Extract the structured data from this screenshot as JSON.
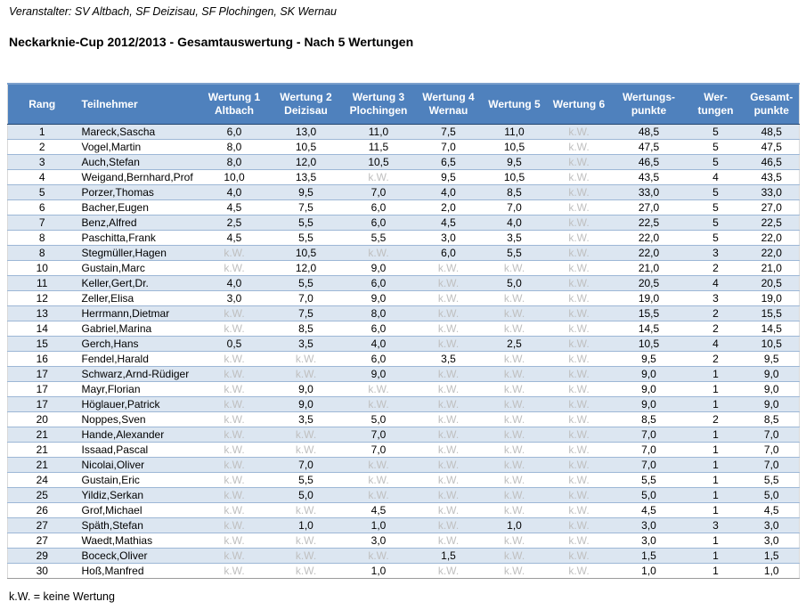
{
  "page": {
    "organizer_line": "Veranstalter: SV Altbach, SF Deizisau, SF Plochingen, SK Wernau",
    "title": "Neckarknie-Cup 2012/2013 - Gesamtauswertung - Nach 5 Wertungen",
    "footnote": "k.W. = keine Wertung"
  },
  "colors": {
    "header_bg": "#4F81BD",
    "band_bg": "#DCE6F1",
    "kw_text": "#BFBFBF"
  },
  "table": {
    "no_value_label": "k.W.",
    "columns": [
      {
        "key": "rank",
        "label": "Rang",
        "align": "center",
        "width": 77
      },
      {
        "key": "name",
        "label": "Teilnehmer",
        "align": "left",
        "width": 137
      },
      {
        "key": "w1",
        "label": "Wertung 1\nAltbach",
        "align": "center",
        "width": 81
      },
      {
        "key": "w2",
        "label": "Wertung 2\nDeizisau",
        "align": "center",
        "width": 80
      },
      {
        "key": "w3",
        "label": "Wertung 3\nPlochingen",
        "align": "center",
        "width": 83
      },
      {
        "key": "w4",
        "label": "Wertung 4\nWernau",
        "align": "center",
        "width": 74
      },
      {
        "key": "w5",
        "label": "Wertung 5",
        "align": "center",
        "width": 74
      },
      {
        "key": "w6",
        "label": "Wertung 6",
        "align": "center",
        "width": 71
      },
      {
        "key": "wpoints",
        "label": "Wertungs-\npunkte",
        "align": "center",
        "width": 86
      },
      {
        "key": "count",
        "label": "Wer-\ntungen",
        "align": "center",
        "width": 64
      },
      {
        "key": "total",
        "label": "Gesamt-\npunkte",
        "align": "center",
        "width": 62
      }
    ],
    "rows": [
      [
        "1",
        "Mareck,Sascha",
        "6,0",
        "13,0",
        "11,0",
        "7,5",
        "11,0",
        "k.W.",
        "48,5",
        "5",
        "48,5"
      ],
      [
        "2",
        "Vogel,Martin",
        "8,0",
        "10,5",
        "11,5",
        "7,0",
        "10,5",
        "k.W.",
        "47,5",
        "5",
        "47,5"
      ],
      [
        "3",
        "Auch,Stefan",
        "8,0",
        "12,0",
        "10,5",
        "6,5",
        "9,5",
        "k.W.",
        "46,5",
        "5",
        "46,5"
      ],
      [
        "4",
        "Weigand,Bernhard,Prof",
        "10,0",
        "13,5",
        "k.W.",
        "9,5",
        "10,5",
        "k.W.",
        "43,5",
        "4",
        "43,5"
      ],
      [
        "5",
        "Porzer,Thomas",
        "4,0",
        "9,5",
        "7,0",
        "4,0",
        "8,5",
        "k.W.",
        "33,0",
        "5",
        "33,0"
      ],
      [
        "6",
        "Bacher,Eugen",
        "4,5",
        "7,5",
        "6,0",
        "2,0",
        "7,0",
        "k.W.",
        "27,0",
        "5",
        "27,0"
      ],
      [
        "7",
        "Benz,Alfred",
        "2,5",
        "5,5",
        "6,0",
        "4,5",
        "4,0",
        "k.W.",
        "22,5",
        "5",
        "22,5"
      ],
      [
        "8",
        "Paschitta,Frank",
        "4,5",
        "5,5",
        "5,5",
        "3,0",
        "3,5",
        "k.W.",
        "22,0",
        "5",
        "22,0"
      ],
      [
        "8",
        "Stegmüller,Hagen",
        "k.W.",
        "10,5",
        "k.W.",
        "6,0",
        "5,5",
        "k.W.",
        "22,0",
        "3",
        "22,0"
      ],
      [
        "10",
        "Gustain,Marc",
        "k.W.",
        "12,0",
        "9,0",
        "k.W.",
        "k.W.",
        "k.W.",
        "21,0",
        "2",
        "21,0"
      ],
      [
        "11",
        "Keller,Gert,Dr.",
        "4,0",
        "5,5",
        "6,0",
        "k.W.",
        "5,0",
        "k.W.",
        "20,5",
        "4",
        "20,5"
      ],
      [
        "12",
        "Zeller,Elisa",
        "3,0",
        "7,0",
        "9,0",
        "k.W.",
        "k.W.",
        "k.W.",
        "19,0",
        "3",
        "19,0"
      ],
      [
        "13",
        "Herrmann,Dietmar",
        "k.W.",
        "7,5",
        "8,0",
        "k.W.",
        "k.W.",
        "k.W.",
        "15,5",
        "2",
        "15,5"
      ],
      [
        "14",
        "Gabriel,Marina",
        "k.W.",
        "8,5",
        "6,0",
        "k.W.",
        "k.W.",
        "k.W.",
        "14,5",
        "2",
        "14,5"
      ],
      [
        "15",
        "Gerch,Hans",
        "0,5",
        "3,5",
        "4,0",
        "k.W.",
        "2,5",
        "k.W.",
        "10,5",
        "4",
        "10,5"
      ],
      [
        "16",
        "Fendel,Harald",
        "k.W.",
        "k.W.",
        "6,0",
        "3,5",
        "k.W.",
        "k.W.",
        "9,5",
        "2",
        "9,5"
      ],
      [
        "17",
        "Schwarz,Arnd-Rüdiger",
        "k.W.",
        "k.W.",
        "9,0",
        "k.W.",
        "k.W.",
        "k.W.",
        "9,0",
        "1",
        "9,0"
      ],
      [
        "17",
        "Mayr,Florian",
        "k.W.",
        "9,0",
        "k.W.",
        "k.W.",
        "k.W.",
        "k.W.",
        "9,0",
        "1",
        "9,0"
      ],
      [
        "17",
        "Höglauer,Patrick",
        "k.W.",
        "9,0",
        "k.W.",
        "k.W.",
        "k.W.",
        "k.W.",
        "9,0",
        "1",
        "9,0"
      ],
      [
        "20",
        "Noppes,Sven",
        "k.W.",
        "3,5",
        "5,0",
        "k.W.",
        "k.W.",
        "k.W.",
        "8,5",
        "2",
        "8,5"
      ],
      [
        "21",
        "Hande,Alexander",
        "k.W.",
        "k.W.",
        "7,0",
        "k.W.",
        "k.W.",
        "k.W.",
        "7,0",
        "1",
        "7,0"
      ],
      [
        "21",
        "Issaad,Pascal",
        "k.W.",
        "k.W.",
        "7,0",
        "k.W.",
        "k.W.",
        "k.W.",
        "7,0",
        "1",
        "7,0"
      ],
      [
        "21",
        "Nicolai,Oliver",
        "k.W.",
        "7,0",
        "k.W.",
        "k.W.",
        "k.W.",
        "k.W.",
        "7,0",
        "1",
        "7,0"
      ],
      [
        "24",
        "Gustain,Eric",
        "k.W.",
        "5,5",
        "k.W.",
        "k.W.",
        "k.W.",
        "k.W.",
        "5,5",
        "1",
        "5,5"
      ],
      [
        "25",
        "Yildiz,Serkan",
        "k.W.",
        "5,0",
        "k.W.",
        "k.W.",
        "k.W.",
        "k.W.",
        "5,0",
        "1",
        "5,0"
      ],
      [
        "26",
        "Grof,Michael",
        "k.W.",
        "k.W.",
        "4,5",
        "k.W.",
        "k.W.",
        "k.W.",
        "4,5",
        "1",
        "4,5"
      ],
      [
        "27",
        "Späth,Stefan",
        "k.W.",
        "1,0",
        "1,0",
        "k.W.",
        "1,0",
        "k.W.",
        "3,0",
        "3",
        "3,0"
      ],
      [
        "27",
        "Waedt,Mathias",
        "k.W.",
        "k.W.",
        "3,0",
        "k.W.",
        "k.W.",
        "k.W.",
        "3,0",
        "1",
        "3,0"
      ],
      [
        "29",
        "Boceck,Oliver",
        "k.W.",
        "k.W.",
        "k.W.",
        "1,5",
        "k.W.",
        "k.W.",
        "1,5",
        "1",
        "1,5"
      ],
      [
        "30",
        "Hoß,Manfred",
        "k.W.",
        "k.W.",
        "1,0",
        "k.W.",
        "k.W.",
        "k.W.",
        "1,0",
        "1",
        "1,0"
      ]
    ]
  }
}
